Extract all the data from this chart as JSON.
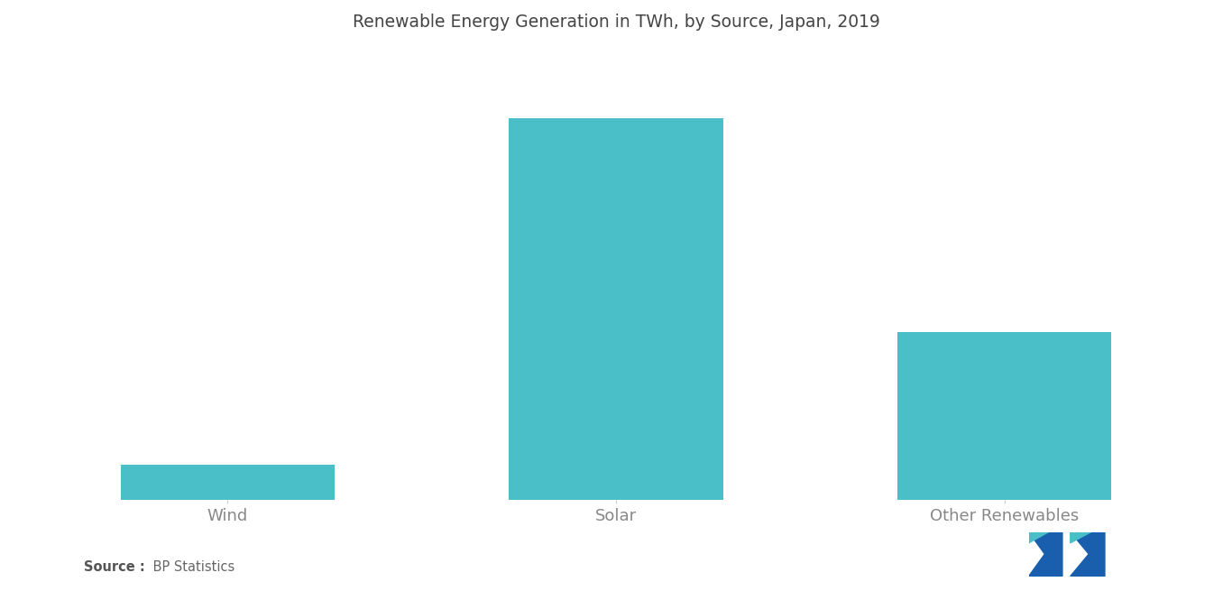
{
  "title": "Renewable Energy Generation in TWh, by Source, Japan, 2019",
  "categories": [
    "Wind",
    "Solar",
    "Other Renewables"
  ],
  "values": [
    7,
    75,
    33
  ],
  "bar_color": "#4BBFC8",
  "bar_width": 0.55,
  "background_color": "#ffffff",
  "title_fontsize": 13.5,
  "label_fontsize": 13,
  "source_bold": "Source :",
  "source_detail": " BP Statistics",
  "ylim": [
    0,
    88
  ],
  "xlim": [
    -0.55,
    2.55
  ],
  "label_color": "#888888",
  "title_color": "#444444",
  "logo_left_color1": "#1A5FAD",
  "logo_left_color2": "#4BBFC8",
  "logo_right_color1": "#1A5FAD",
  "logo_right_color2": "#4BBFC8"
}
